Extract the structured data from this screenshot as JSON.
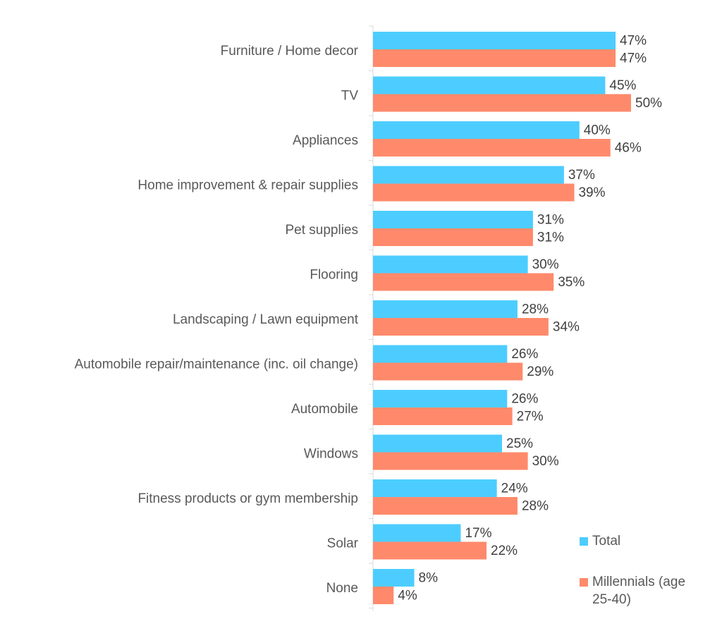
{
  "chart_data": {
    "type": "bar",
    "orientation": "horizontal",
    "categories": [
      "Furniture / Home decor",
      "TV",
      "Appliances",
      "Home improvement & repair supplies",
      "Pet supplies",
      "Flooring",
      "Landscaping / Lawn equipment",
      "Automobile repair/maintenance (inc. oil change)",
      "Automobile",
      "Windows",
      "Fitness products or gym membership",
      "Solar",
      "None"
    ],
    "series": [
      {
        "name": "Total",
        "color": "#4dcdff",
        "values": [
          47,
          45,
          40,
          37,
          31,
          30,
          28,
          26,
          26,
          25,
          24,
          17,
          8
        ],
        "labels": [
          "47%",
          "45%",
          "40%",
          "37%",
          "31%",
          "30%",
          "28%",
          "26%",
          "26%",
          "25%",
          "24%",
          "17%",
          "8%"
        ]
      },
      {
        "name": "Millennials (age 25-40)",
        "color": "#ff8a6b",
        "values": [
          47,
          50,
          46,
          39,
          31,
          35,
          34,
          29,
          27,
          30,
          28,
          22,
          4
        ],
        "labels": [
          "47%",
          "50%",
          "46%",
          "39%",
          "31%",
          "35%",
          "34%",
          "29%",
          "27%",
          "30%",
          "28%",
          "22%",
          "4%"
        ]
      }
    ],
    "xlim": [
      0,
      50
    ],
    "unit": "%",
    "grid": false,
    "legend": {
      "position": "bottom-right",
      "items": [
        {
          "label_lines": [
            "Total"
          ]
        },
        {
          "label_lines": [
            "Millennials (age",
            "25-40)"
          ]
        }
      ]
    }
  }
}
